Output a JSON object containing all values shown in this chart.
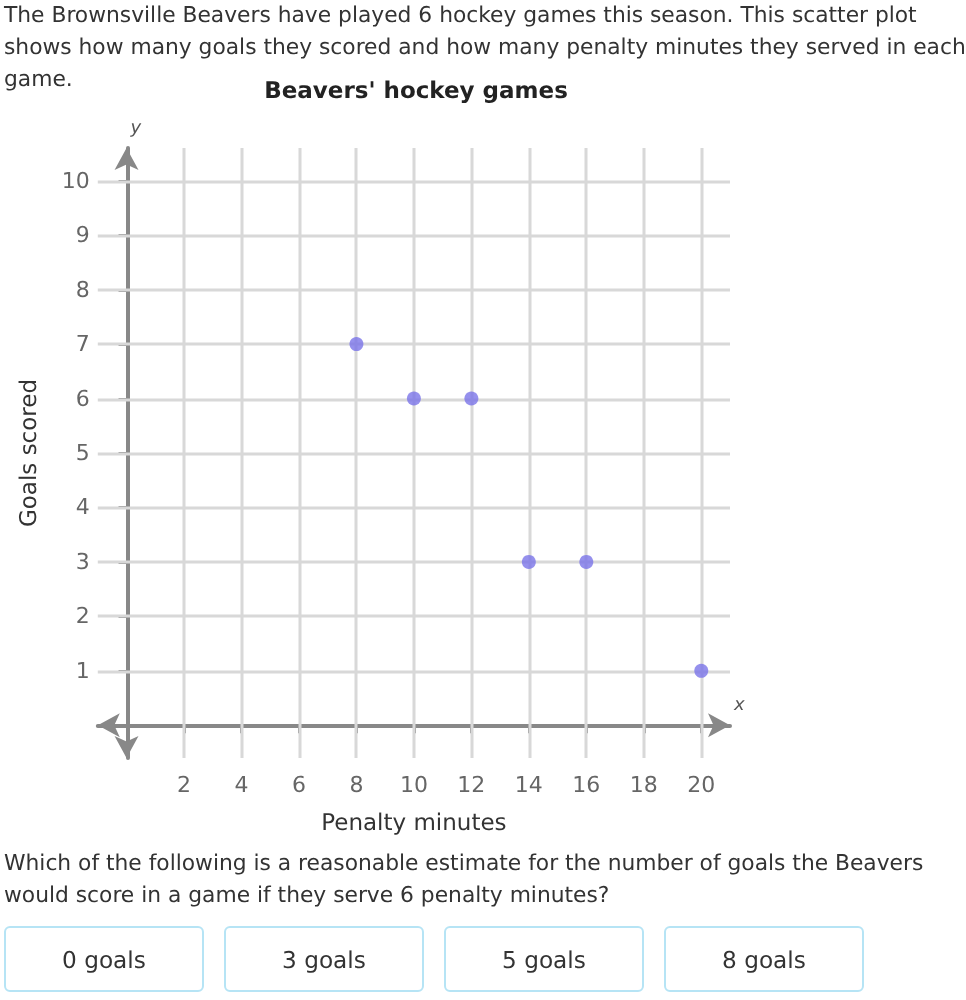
{
  "chart_data": {
    "type": "scatter",
    "title": "Beavers' hockey games",
    "xlabel": "Penalty minutes",
    "ylabel": "Goals scored",
    "x": [
      8,
      10,
      12,
      14,
      16,
      20
    ],
    "values": [
      7,
      6,
      6,
      3,
      3,
      1
    ],
    "color": "#7b74e8",
    "marker": "circle",
    "grid": true,
    "xlim": [
      -1,
      21
    ],
    "ylim": [
      -0.6,
      10.6
    ],
    "xticks": [
      2,
      4,
      6,
      8,
      10,
      12,
      14,
      16,
      18,
      20
    ],
    "yticks": [
      1,
      2,
      3,
      4,
      5,
      6,
      7,
      8,
      9,
      10
    ],
    "annotations": [
      "The Brownsville Beavers have played 6 hockey games this season. This scatter plot shows how many goals they scored and how many penalty minutes they served in each game.",
      "Which of the following is a reasonable estimate for the number of goals the Beavers would score in a game if they serve 6 penalty minutes?",
      "0 goals",
      "3 goals",
      "5 goals",
      "8 goals",
      "x",
      "y"
    ]
  }
}
